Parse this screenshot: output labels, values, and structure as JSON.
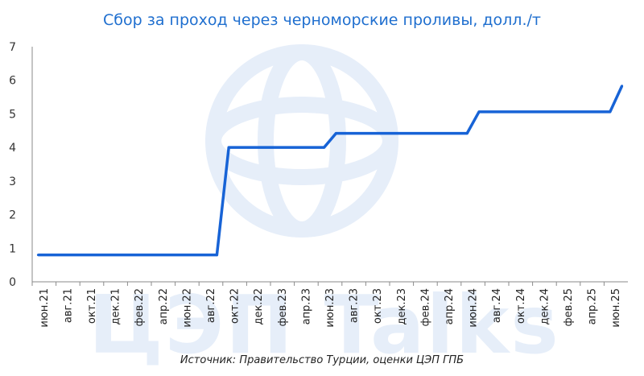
{
  "colors": {
    "line": "#1763d6",
    "title": "#1f6fcf",
    "axis": "#8a8a8a",
    "watermark": "#e6eef9"
  },
  "watermark": {
    "icon": "globe-logo-icon",
    "text": "ЦЭП Talks"
  },
  "source": "Источник: Правительство Турции, оценки ЦЭП ГПБ",
  "chart_data": {
    "type": "line",
    "title": "Сбор за проход через черноморские проливы, долл./т",
    "xlabel": "",
    "ylabel": "",
    "ylim": [
      0,
      7
    ],
    "yticks": [
      "0",
      "1",
      "2",
      "3",
      "4",
      "5",
      "6",
      "7"
    ],
    "grid": false,
    "x_tick_labels": [
      "июн.21",
      "авг.21",
      "окт.21",
      "дек.21",
      "фев.22",
      "апр.22",
      "июн.22",
      "авг.22",
      "окт.22",
      "дек.22",
      "фев.23",
      "апр.23",
      "июн.23",
      "авг.23",
      "окт.23",
      "дек.23",
      "фев.24",
      "апр.24",
      "июн.24",
      "авг.24",
      "окт.24",
      "дек.24",
      "фев.25",
      "апр.25",
      "июн.25"
    ],
    "series": [
      {
        "points": [
          {
            "x": "2021-06",
            "y": 0.8
          },
          {
            "x": "2022-09",
            "y": 0.8
          },
          {
            "x": "2022-10",
            "y": 4.0
          },
          {
            "x": "2023-06",
            "y": 4.0
          },
          {
            "x": "2023-07",
            "y": 4.42
          },
          {
            "x": "2024-06",
            "y": 4.42
          },
          {
            "x": "2024-07",
            "y": 5.06
          },
          {
            "x": "2025-06",
            "y": 5.06
          },
          {
            "x": "2025-07",
            "y": 5.83
          }
        ]
      }
    ]
  }
}
